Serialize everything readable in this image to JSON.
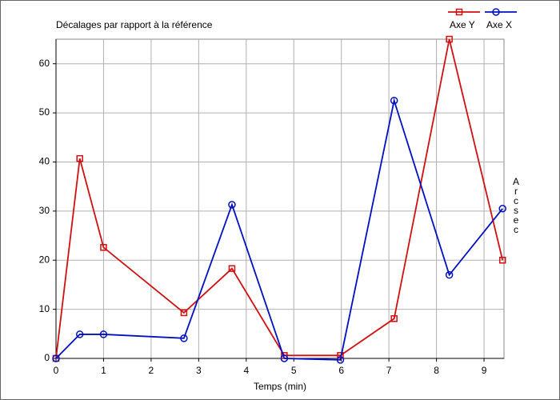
{
  "chart_data": {
    "type": "line",
    "title": "Décalages par rapport à la référence",
    "x_label": "Temps (min)",
    "y_label": "Arcsec",
    "xlim": [
      0,
      9.42
    ],
    "ylim": [
      0,
      65
    ],
    "xticks": [
      0,
      1,
      2,
      3,
      4,
      5,
      6,
      7,
      8,
      9
    ],
    "yticks": [
      0,
      10,
      20,
      30,
      40,
      50,
      60
    ],
    "grid": true,
    "legend": "top-right",
    "series": [
      {
        "name": "Axe Y",
        "color": "#d01010",
        "marker": "square",
        "x": [
          0,
          0.5,
          1,
          2.69,
          3.7,
          4.8,
          5.98,
          7.11,
          8.27,
          9.39
        ],
        "values": [
          0,
          40.7,
          22.6,
          9.3,
          18.3,
          0.6,
          0.6,
          8.1,
          65,
          20
        ]
      },
      {
        "name": "Axe X",
        "color": "#0010c0",
        "marker": "circle",
        "x": [
          0,
          0.5,
          1,
          2.69,
          3.7,
          4.8,
          5.98,
          7.11,
          8.27,
          9.39
        ],
        "values": [
          0,
          4.9,
          4.9,
          4.1,
          31.3,
          0,
          -0.3,
          52.5,
          17,
          30.5
        ]
      }
    ]
  }
}
